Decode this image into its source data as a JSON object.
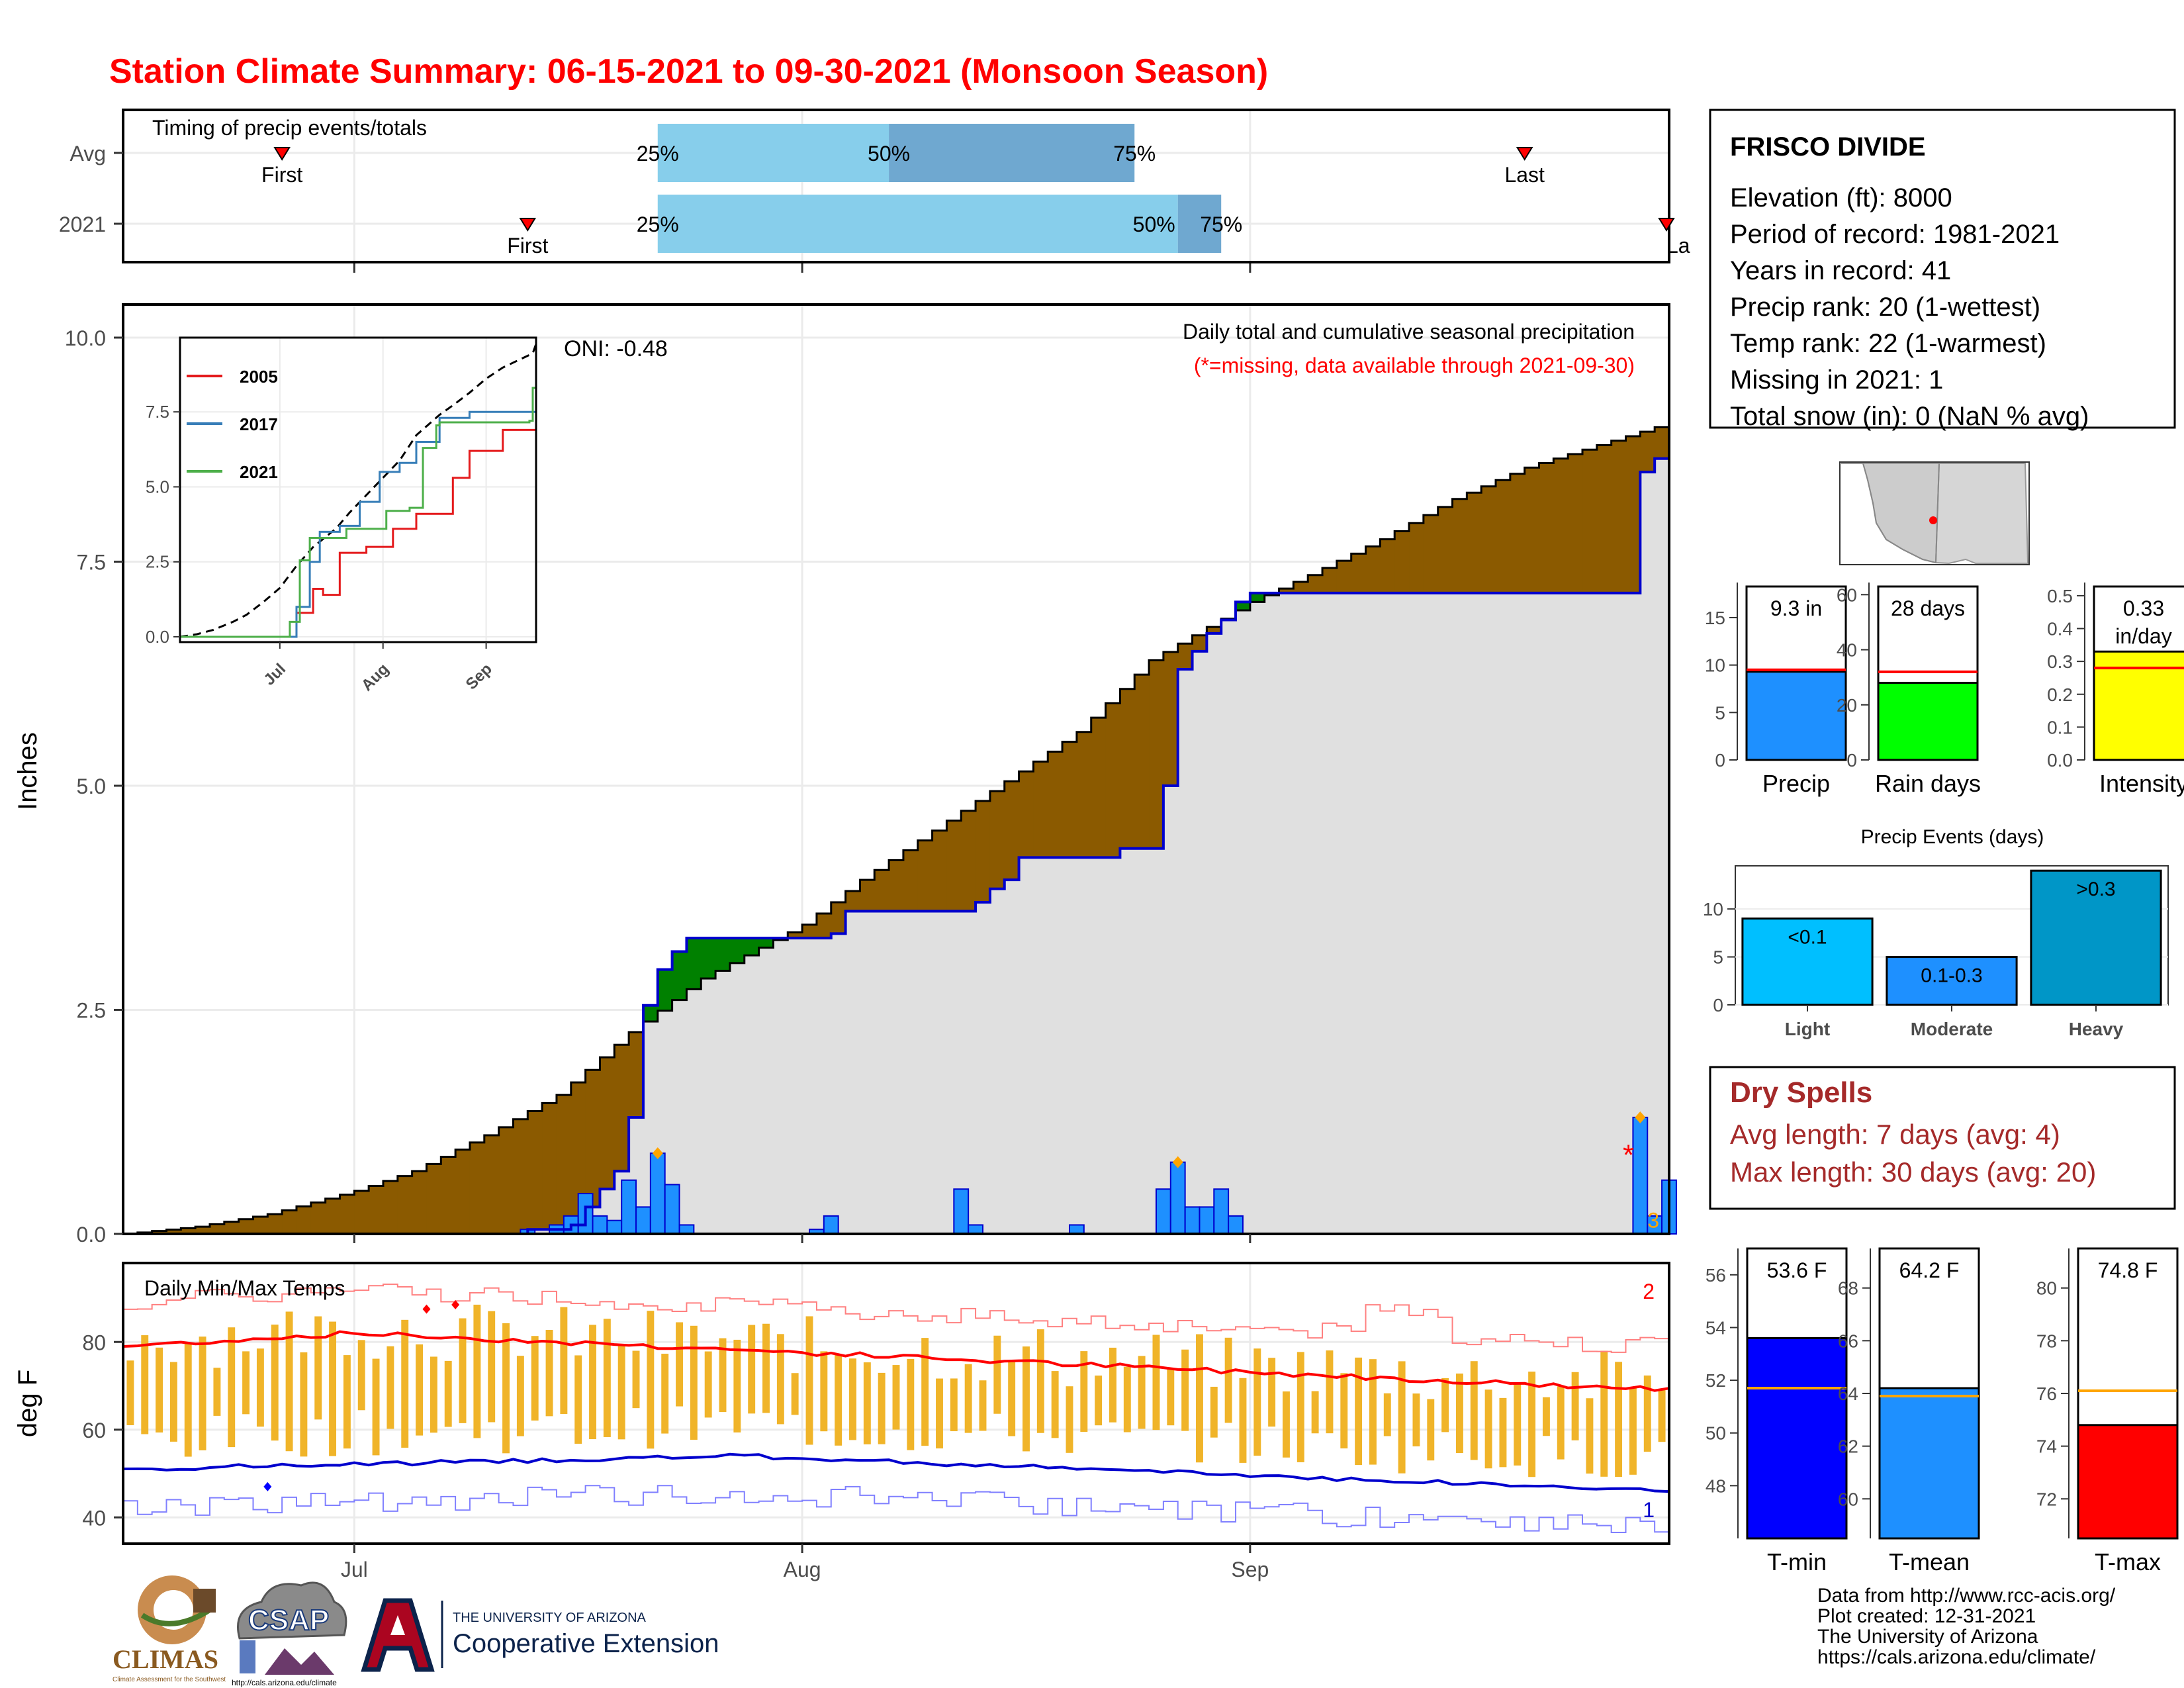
{
  "title": "Station Climate Summary: 06-15-2021 to 09-30-2021 (Monsoon Season)",
  "colors": {
    "title_red": "#ff0000",
    "light_blue": "#87ceeb",
    "mid_blue": "#6fa8d0",
    "brown": "#8b5a00",
    "green": "#008000",
    "daily_blue": "#1e90ff",
    "temp_bar": "#f0b429",
    "dry_spell_red": "#a52a2a"
  },
  "timing": {
    "title": "Timing of precip events/totals",
    "rows": [
      {
        "label": "Avg",
        "first_date": "2021-06-26",
        "first_label": "First",
        "q25_date": "2021-07-22",
        "q50_date": "2021-08-07",
        "q75_date": "2021-08-24",
        "q25_label": "25%",
        "q50_label": "50%",
        "q75_label": "75%",
        "last_date": "2021-09-20",
        "last_label": "Last"
      },
      {
        "label": "2021",
        "first_date": "2021-07-13",
        "first_label": "First",
        "q25_date": "2021-07-22",
        "q50_date": "2021-08-27",
        "q75_date": "2021-08-30",
        "q25_label": "25%",
        "q50_label": "50%",
        "q75_label": "75%",
        "last_date": "2021-09-30",
        "last_label": "La"
      }
    ]
  },
  "chart_data": [
    {
      "type": "area",
      "name_key": "precip",
      "title": "Daily total and cumulative seasonal precipitation",
      "subtitle": "(*=missing, data available through 2021-09-30)",
      "oni": "ONI: -0.48",
      "ylabel": "Inches",
      "ylim": [
        0,
        10
      ],
      "yticks": [
        "0.0",
        "2.5",
        "5.0",
        "7.5",
        "10.0"
      ],
      "xlim": [
        "2021-06-15",
        "2021-09-30"
      ],
      "xticks": [
        {
          "date": "2021-07-01",
          "label": "Jul"
        },
        {
          "date": "2021-08-01",
          "label": "Aug"
        },
        {
          "date": "2021-09-01",
          "label": "Sep"
        }
      ],
      "avg_cumulative": [
        {
          "date": "2021-06-15",
          "value": 0.0
        },
        {
          "date": "2021-06-20",
          "value": 0.08
        },
        {
          "date": "2021-06-25",
          "value": 0.22
        },
        {
          "date": "2021-07-01",
          "value": 0.48
        },
        {
          "date": "2021-07-05",
          "value": 0.7
        },
        {
          "date": "2021-07-10",
          "value": 1.1
        },
        {
          "date": "2021-07-15",
          "value": 1.55
        },
        {
          "date": "2021-07-20",
          "value": 2.25
        },
        {
          "date": "2021-07-25",
          "value": 2.85
        },
        {
          "date": "2021-08-01",
          "value": 3.45
        },
        {
          "date": "2021-08-05",
          "value": 3.95
        },
        {
          "date": "2021-08-10",
          "value": 4.5
        },
        {
          "date": "2021-08-15",
          "value": 5.05
        },
        {
          "date": "2021-08-20",
          "value": 5.6
        },
        {
          "date": "2021-08-25",
          "value": 6.4
        },
        {
          "date": "2021-09-01",
          "value": 7.05
        },
        {
          "date": "2021-09-05",
          "value": 7.35
        },
        {
          "date": "2021-09-10",
          "value": 7.75
        },
        {
          "date": "2021-09-15",
          "value": 8.2
        },
        {
          "date": "2021-09-20",
          "value": 8.55
        },
        {
          "date": "2021-09-25",
          "value": 8.8
        },
        {
          "date": "2021-09-29",
          "value": 9.0
        },
        {
          "date": "2021-09-30",
          "value": 9.3
        }
      ],
      "cum_2021": [
        {
          "date": "2021-06-15",
          "value": 0.0
        },
        {
          "date": "2021-07-13",
          "value": 0.0
        },
        {
          "date": "2021-07-13",
          "value": 0.05
        },
        {
          "date": "2021-07-16",
          "value": 0.1
        },
        {
          "date": "2021-07-17",
          "value": 0.3
        },
        {
          "date": "2021-07-18",
          "value": 0.5
        },
        {
          "date": "2021-07-19",
          "value": 0.7
        },
        {
          "date": "2021-07-20",
          "value": 1.3
        },
        {
          "date": "2021-07-21",
          "value": 2.55
        },
        {
          "date": "2021-07-22",
          "value": 2.95
        },
        {
          "date": "2021-07-23",
          "value": 3.15
        },
        {
          "date": "2021-07-24",
          "value": 3.3
        },
        {
          "date": "2021-08-03",
          "value": 3.35
        },
        {
          "date": "2021-08-04",
          "value": 3.6
        },
        {
          "date": "2021-08-13",
          "value": 3.7
        },
        {
          "date": "2021-08-14",
          "value": 3.85
        },
        {
          "date": "2021-08-15",
          "value": 3.95
        },
        {
          "date": "2021-08-16",
          "value": 4.2
        },
        {
          "date": "2021-08-23",
          "value": 4.3
        },
        {
          "date": "2021-08-26",
          "value": 5.0
        },
        {
          "date": "2021-08-27",
          "value": 6.3
        },
        {
          "date": "2021-08-28",
          "value": 6.5
        },
        {
          "date": "2021-08-29",
          "value": 6.7
        },
        {
          "date": "2021-08-30",
          "value": 6.85
        },
        {
          "date": "2021-08-31",
          "value": 7.05
        },
        {
          "date": "2021-09-01",
          "value": 7.15
        },
        {
          "date": "2021-09-28",
          "value": 7.2
        },
        {
          "date": "2021-09-28",
          "value": 8.5
        },
        {
          "date": "2021-09-29",
          "value": 8.65
        },
        {
          "date": "2021-09-30",
          "value": 9.3
        }
      ],
      "daily_2021": [
        {
          "date": "2021-07-13",
          "value": 0.05
        },
        {
          "date": "2021-07-15",
          "value": 0.1
        },
        {
          "date": "2021-07-16",
          "value": 0.2
        },
        {
          "date": "2021-07-17",
          "value": 0.45
        },
        {
          "date": "2021-07-18",
          "value": 0.2
        },
        {
          "date": "2021-07-19",
          "value": 0.15
        },
        {
          "date": "2021-07-20",
          "value": 0.6
        },
        {
          "date": "2021-07-21",
          "value": 0.3
        },
        {
          "date": "2021-07-22",
          "value": 0.9
        },
        {
          "date": "2021-07-23",
          "value": 0.55
        },
        {
          "date": "2021-07-24",
          "value": 0.1
        },
        {
          "date": "2021-08-02",
          "value": 0.05
        },
        {
          "date": "2021-08-03",
          "value": 0.2
        },
        {
          "date": "2021-08-12",
          "value": 0.5
        },
        {
          "date": "2021-08-13",
          "value": 0.1
        },
        {
          "date": "2021-08-20",
          "value": 0.1
        },
        {
          "date": "2021-08-26",
          "value": 0.5
        },
        {
          "date": "2021-08-27",
          "value": 0.8
        },
        {
          "date": "2021-08-28",
          "value": 0.3
        },
        {
          "date": "2021-08-29",
          "value": 0.3
        },
        {
          "date": "2021-08-30",
          "value": 0.5
        },
        {
          "date": "2021-08-31",
          "value": 0.2
        },
        {
          "date": "2021-09-28",
          "value": 1.3
        },
        {
          "date": "2021-09-29",
          "value": 0.2
        },
        {
          "date": "2021-09-30",
          "value": 0.6
        }
      ],
      "missing_marker": {
        "date": "2021-09-27",
        "value": 0.95,
        "label": "*"
      },
      "record_marker_label": "3",
      "inset": {
        "yticks": [
          "0.0",
          "2.5",
          "5.0",
          "7.5"
        ],
        "xticks": [
          "Jul",
          "Aug",
          "Sep"
        ],
        "legend": [
          {
            "name": "2005",
            "color": "#e41a1c"
          },
          {
            "name": "2017",
            "color": "#377eb8"
          },
          {
            "name": "2021",
            "color": "#4daf4a"
          }
        ]
      }
    },
    {
      "type": "line",
      "name_key": "temps",
      "title": "Daily Min/Max Temps",
      "ylabel": "deg F",
      "ylim": [
        34,
        98
      ],
      "yticks": [
        "40",
        "60",
        "80"
      ],
      "record_high_count": "2",
      "record_low_count": "1",
      "avg_max_start": 79,
      "avg_max_peak": 82,
      "avg_max_end": 69,
      "avg_min_start": 51,
      "avg_min_peak": 54,
      "avg_min_end": 46
    }
  ],
  "station": {
    "name": "FRISCO DIVIDE",
    "lines": [
      "Elevation (ft): 8000",
      "Period of record: 1981-2021",
      "Years in record: 41",
      "Precip rank: 20 (1-wettest)",
      "Temp rank: 22 (1-warmest)",
      "Missing in 2021: 1",
      "Total snow (in): 0 (NaN % avg)"
    ]
  },
  "mini_bars": [
    {
      "label": "Precip",
      "value_label": "9.3 in",
      "value": 9.3,
      "avg": 9.5,
      "max": 18,
      "ticks": [
        "0",
        "5",
        "10",
        "15"
      ],
      "tick_vals": [
        0,
        5,
        10,
        15
      ],
      "color": "#1e90ff"
    },
    {
      "label": "Rain days",
      "value_label": "28 days",
      "value": 28,
      "avg": 32,
      "max": 62,
      "ticks": [
        "0",
        "20",
        "40",
        "60"
      ],
      "tick_vals": [
        0,
        20,
        40,
        60
      ],
      "color": "#00ff00"
    },
    {
      "label": "Intensity",
      "value_label": "0.33",
      "value_label2": "in/day",
      "value": 0.33,
      "avg": 0.28,
      "max": 0.52,
      "ticks": [
        "0.0",
        "0.1",
        "0.2",
        "0.3",
        "0.4",
        "0.5"
      ],
      "tick_vals": [
        0,
        0.1,
        0.2,
        0.3,
        0.4,
        0.5
      ],
      "color": "#ffff00"
    }
  ],
  "precip_events": {
    "title": "Precip Events (days)",
    "max": 14.5,
    "ticks": [
      "0",
      "5",
      "10"
    ],
    "bars": [
      {
        "label": "Light",
        "inside": "<0.1",
        "value": 9,
        "color": "#00bfff"
      },
      {
        "label": "Moderate",
        "inside": "0.1-0.3",
        "value": 5,
        "color": "#1e90ff"
      },
      {
        "label": "Heavy",
        "inside": ">0.3",
        "value": 14,
        "color": "#0096c7"
      }
    ]
  },
  "dry_spells": {
    "title": "Dry Spells",
    "avg_line": "Avg length: 7 days (avg: 4)",
    "max_line": "Max length: 30 days (avg: 20)"
  },
  "temp_bars": [
    {
      "label": "T-min",
      "value_label": "53.6 F",
      "value": 53.6,
      "avg": 51.7,
      "min": 46,
      "max": 57,
      "ticks": [
        "48",
        "50",
        "52",
        "54",
        "56"
      ],
      "tick_vals": [
        48,
        50,
        52,
        54,
        56
      ],
      "color": "#0000ff"
    },
    {
      "label": "T-mean",
      "value_label": "64.2 F",
      "value": 64.2,
      "avg": 63.9,
      "min": 58.5,
      "max": 69.5,
      "ticks": [
        "60",
        "62",
        "64",
        "66",
        "68"
      ],
      "tick_vals": [
        60,
        62,
        64,
        66,
        68
      ],
      "color": "#1e90ff"
    },
    {
      "label": "T-max",
      "value_label": "74.8 F",
      "value": 74.8,
      "avg": 76.1,
      "min": 70.5,
      "max": 81.5,
      "ticks": [
        "72",
        "74",
        "76",
        "78",
        "80"
      ],
      "tick_vals": [
        72,
        74,
        76,
        78,
        80
      ],
      "color": "#ff0000"
    }
  ],
  "footer": {
    "lines": [
      "Data from http://www.rcc-acis.org/",
      "Plot created: 12-31-2021",
      "The University of Arizona",
      "https://cals.arizona.edu/climate/"
    ]
  },
  "logos": {
    "climas": "CLIMAS",
    "climas_sub": "Climate Assessment for the Southwest",
    "csap": "CSAP",
    "csap_url": "http://cals.arizona.edu/climate",
    "ua_small": "THE UNIVERSITY OF ARIZONA",
    "ua_big": "Cooperative Extension"
  }
}
